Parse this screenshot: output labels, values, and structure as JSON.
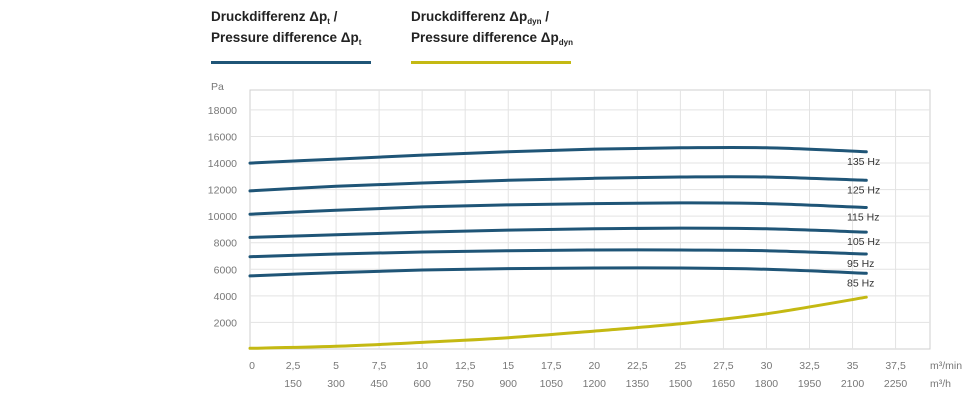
{
  "legend": [
    {
      "line1": "Druckdifferenz Δp",
      "line1_sub": "t",
      "line1_tail": " /",
      "line2": "Pressure difference Δp",
      "line2_sub": "t",
      "color": "#1f5577"
    },
    {
      "line1": "Druckdifferenz Δp",
      "line1_sub": "dyn",
      "line1_tail": " /",
      "line2": "Pressure difference Δp",
      "line2_sub": "dyn",
      "color": "#c4b913"
    }
  ],
  "chart_data": {
    "type": "line",
    "ylabel": "Pa",
    "ylim": [
      0,
      19500
    ],
    "xlim": [
      0,
      39.5
    ],
    "y_ticks": [
      2000,
      4000,
      6000,
      8000,
      10000,
      12000,
      14000,
      16000,
      18000
    ],
    "y_tick_labels": [
      "2000",
      "4000",
      "6000",
      "8000",
      "10000",
      "12000",
      "14000",
      "16000",
      "18000"
    ],
    "x_ticks_primary": [
      0,
      2.5,
      5,
      7.5,
      10,
      12.5,
      15,
      17.5,
      20,
      22.5,
      25,
      27.5,
      30,
      32.5,
      35,
      37.5
    ],
    "x_tick_labels_primary": [
      "0",
      "2,5",
      "5",
      "7,5",
      "10",
      "12,5",
      "15",
      "17,5",
      "20",
      "22,5",
      "25",
      "27,5",
      "30",
      "32,5",
      "35",
      "37,5"
    ],
    "x_unit_primary": "m³/min",
    "x_ticks_secondary": [
      2.5,
      5,
      7.5,
      10,
      12.5,
      15,
      17.5,
      20,
      22.5,
      25,
      27.5,
      30,
      32.5,
      35,
      37.5
    ],
    "x_tick_labels_secondary": [
      "150",
      "300",
      "450",
      "600",
      "750",
      "900",
      "1050",
      "1200",
      "1350",
      "1500",
      "1650",
      "1800",
      "1950",
      "2100",
      "2250"
    ],
    "x_unit_secondary": "m³/h",
    "grid": true,
    "series": [
      {
        "name": "135 Hz",
        "group": "pt",
        "color": "#1f5577",
        "x": [
          0,
          5,
          10,
          15,
          20,
          25,
          30,
          35.8
        ],
        "y": [
          14000,
          14300,
          14600,
          14850,
          15050,
          15150,
          15150,
          14850
        ]
      },
      {
        "name": "125 Hz",
        "group": "pt",
        "color": "#1f5577",
        "x": [
          0,
          5,
          10,
          15,
          20,
          25,
          30,
          35.8
        ],
        "y": [
          11900,
          12250,
          12500,
          12700,
          12850,
          12950,
          12950,
          12700
        ]
      },
      {
        "name": "115 Hz",
        "group": "pt",
        "color": "#1f5577",
        "x": [
          0,
          5,
          10,
          15,
          20,
          25,
          30,
          35.8
        ],
        "y": [
          10150,
          10450,
          10700,
          10850,
          10950,
          11000,
          10950,
          10650
        ]
      },
      {
        "name": "105 Hz",
        "group": "pt",
        "color": "#1f5577",
        "x": [
          0,
          5,
          10,
          15,
          20,
          25,
          30,
          35.8
        ],
        "y": [
          8400,
          8600,
          8800,
          8950,
          9050,
          9100,
          9050,
          8800
        ]
      },
      {
        "name": "95 Hz",
        "group": "pt",
        "color": "#1f5577",
        "x": [
          0,
          5,
          10,
          15,
          20,
          25,
          30,
          35.8
        ],
        "y": [
          6950,
          7150,
          7300,
          7400,
          7450,
          7450,
          7400,
          7150
        ]
      },
      {
        "name": "85 Hz",
        "group": "pt",
        "color": "#1f5577",
        "x": [
          0,
          5,
          10,
          15,
          20,
          25,
          30,
          35.8
        ],
        "y": [
          5500,
          5750,
          5950,
          6050,
          6100,
          6100,
          6000,
          5700
        ]
      },
      {
        "name": "",
        "group": "pdyn",
        "color": "#c4b913",
        "x": [
          0,
          5,
          10,
          15,
          20,
          25,
          30,
          35.8
        ],
        "y": [
          50,
          200,
          500,
          850,
          1350,
          1900,
          2650,
          3900
        ]
      }
    ]
  }
}
